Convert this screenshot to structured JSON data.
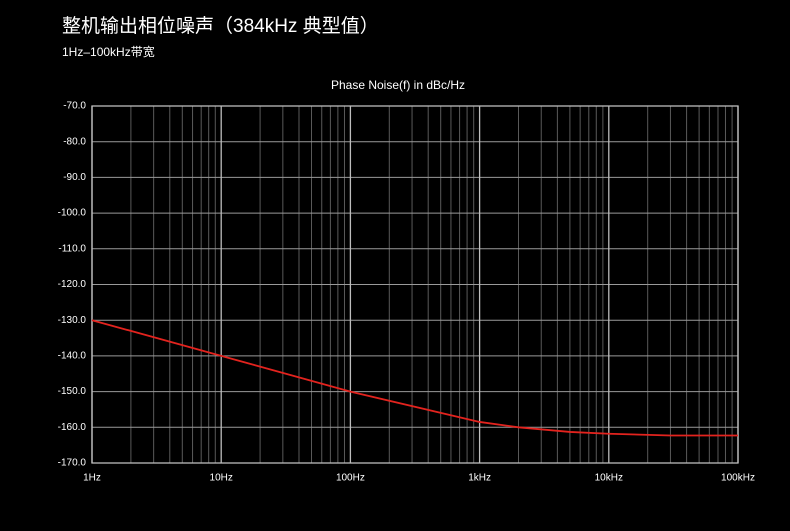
{
  "chart_data": {
    "type": "line",
    "title": "整机输出相位噪声（384kHz 典型值）",
    "subtitle": "1Hz–100kHz带宽",
    "plot_title": "Phase Noise(f) in dBc/Hz",
    "x": [
      1,
      10,
      100,
      1000,
      2000,
      5000,
      10000,
      30000,
      100000
    ],
    "values": [
      -130,
      -140,
      -150,
      -158.5,
      -160,
      -161.3,
      -161.8,
      -162.3,
      -162.3
    ],
    "color": "#e3231e",
    "xscale": "log",
    "xlim": [
      1,
      100000
    ],
    "xticks": [
      {
        "value": 1,
        "label": "1Hz"
      },
      {
        "value": 10,
        "label": "10Hz"
      },
      {
        "value": 100,
        "label": "100Hz"
      },
      {
        "value": 1000,
        "label": "1kHz"
      },
      {
        "value": 10000,
        "label": "10kHz"
      },
      {
        "value": 100000,
        "label": "100kHz"
      }
    ],
    "ylim": [
      -170,
      -70
    ],
    "yticks": [
      {
        "value": -70,
        "label": "-70.0"
      },
      {
        "value": -80,
        "label": "-80.0"
      },
      {
        "value": -90,
        "label": "-90.0"
      },
      {
        "value": -100,
        "label": "-100.0"
      },
      {
        "value": -110,
        "label": "-110.0"
      },
      {
        "value": -120,
        "label": "-120.0"
      },
      {
        "value": -130,
        "label": "-130.0"
      },
      {
        "value": -140,
        "label": "-140.0"
      },
      {
        "value": -150,
        "label": "-150.0"
      },
      {
        "value": -160,
        "label": "-160.0"
      },
      {
        "value": -170,
        "label": "-170.0"
      }
    ],
    "grid": true,
    "minor_grid": true
  }
}
